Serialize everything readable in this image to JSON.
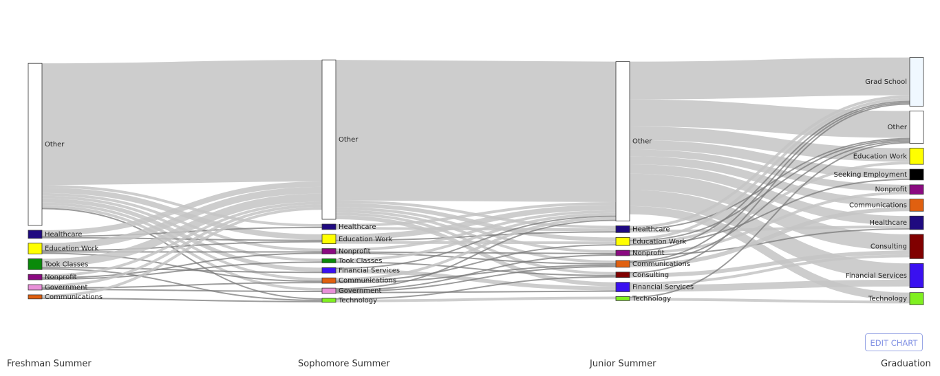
{
  "chart_data": {
    "type": "sankey",
    "columns": [
      "Freshman Summer",
      "Sophomore Summer",
      "Junior Summer",
      "Graduation"
    ],
    "nodes": [
      {
        "id": "f_other",
        "col": 0,
        "label": "Other",
        "color": "#ffffff",
        "value": 60
      },
      {
        "id": "f_health",
        "col": 0,
        "label": "Healthcare",
        "color": "#1f0a80",
        "value": 3
      },
      {
        "id": "f_edu",
        "col": 0,
        "label": "Education Work",
        "color": "#ffff00",
        "value": 4
      },
      {
        "id": "f_took",
        "col": 0,
        "label": "Took Classes",
        "color": "#0a8a0a",
        "value": 4
      },
      {
        "id": "f_nonprofit",
        "col": 0,
        "label": "Nonprofit",
        "color": "#8a0a80",
        "value": 2
      },
      {
        "id": "f_gov",
        "col": 0,
        "label": "Government",
        "color": "#e890d8",
        "value": 2
      },
      {
        "id": "f_comm",
        "col": 0,
        "label": "Communications",
        "color": "#e06010",
        "value": 1.5
      },
      {
        "id": "s_other",
        "col": 1,
        "label": "Other",
        "color": "#ffffff",
        "value": 59
      },
      {
        "id": "s_health",
        "col": 1,
        "label": "Healthcare",
        "color": "#1f0a80",
        "value": 2
      },
      {
        "id": "s_edu",
        "col": 1,
        "label": "Education Work",
        "color": "#ffff00",
        "value": 3.5
      },
      {
        "id": "s_nonprofit",
        "col": 1,
        "label": "Nonprofit",
        "color": "#8a0a80",
        "value": 2
      },
      {
        "id": "s_took",
        "col": 1,
        "label": "Took Classes",
        "color": "#0a8a0a",
        "value": 1.5
      },
      {
        "id": "s_fin",
        "col": 1,
        "label": "Financial Services",
        "color": "#3a10f0",
        "value": 2
      },
      {
        "id": "s_comm",
        "col": 1,
        "label": "Communications",
        "color": "#e06010",
        "value": 2
      },
      {
        "id": "s_gov",
        "col": 1,
        "label": "Government",
        "color": "#e890d8",
        "value": 2
      },
      {
        "id": "s_tech",
        "col": 1,
        "label": "Technology",
        "color": "#80f020",
        "value": 1.5
      },
      {
        "id": "j_other",
        "col": 2,
        "label": "Other",
        "color": "#ffffff",
        "value": 59
      },
      {
        "id": "j_health",
        "col": 2,
        "label": "Healthcare",
        "color": "#1f0a80",
        "value": 2.5
      },
      {
        "id": "j_edu",
        "col": 2,
        "label": "Education Work",
        "color": "#ffff00",
        "value": 3
      },
      {
        "id": "j_nonprofit",
        "col": 2,
        "label": "Nonprofit",
        "color": "#8a0a80",
        "value": 2
      },
      {
        "id": "j_comm",
        "col": 2,
        "label": "Communications",
        "color": "#e06010",
        "value": 2.5
      },
      {
        "id": "j_consult",
        "col": 2,
        "label": "Consulting",
        "color": "#800000",
        "value": 2
      },
      {
        "id": "j_fin",
        "col": 2,
        "label": "Financial Services",
        "color": "#3a10f0",
        "value": 3.5
      },
      {
        "id": "j_tech",
        "col": 2,
        "label": "Technology",
        "color": "#80f020",
        "value": 1.5
      },
      {
        "id": "g_grad",
        "col": 3,
        "label": "Grad School",
        "color": "#f0f8ff",
        "value": 18
      },
      {
        "id": "g_other",
        "col": 3,
        "label": "Other",
        "color": "#ffffff",
        "value": 12
      },
      {
        "id": "g_edu",
        "col": 3,
        "label": "Education Work",
        "color": "#ffff00",
        "value": 6
      },
      {
        "id": "g_seek",
        "col": 3,
        "label": "Seeking Employment",
        "color": "#000000",
        "value": 4
      },
      {
        "id": "g_nonprofit",
        "col": 3,
        "label": "Nonprofit",
        "color": "#8a0a80",
        "value": 3.5
      },
      {
        "id": "g_comm",
        "col": 3,
        "label": "Communications",
        "color": "#e06010",
        "value": 4.5
      },
      {
        "id": "g_health",
        "col": 3,
        "label": "Healthcare",
        "color": "#1f0a80",
        "value": 5
      },
      {
        "id": "g_consult",
        "col": 3,
        "label": "Consulting",
        "color": "#800000",
        "value": 9
      },
      {
        "id": "g_fin",
        "col": 3,
        "label": "Financial Services",
        "color": "#3a10f0",
        "value": 9
      },
      {
        "id": "g_tech",
        "col": 3,
        "label": "Technology",
        "color": "#80f020",
        "value": 4.5
      }
    ],
    "links": [
      {
        "source": "f_other",
        "target": "s_other",
        "value": 45
      },
      {
        "source": "f_other",
        "target": "s_health",
        "value": 1
      },
      {
        "source": "f_other",
        "target": "s_edu",
        "value": 2
      },
      {
        "source": "f_other",
        "target": "s_nonprofit",
        "value": 1
      },
      {
        "source": "f_other",
        "target": "s_took",
        "value": 1
      },
      {
        "source": "f_other",
        "target": "s_fin",
        "value": 1.5
      },
      {
        "source": "f_other",
        "target": "s_comm",
        "value": 1
      },
      {
        "source": "f_other",
        "target": "s_gov",
        "value": 1
      },
      {
        "source": "f_other",
        "target": "s_tech",
        "value": 0.5
      },
      {
        "source": "f_health",
        "target": "s_other",
        "value": 2
      },
      {
        "source": "f_health",
        "target": "s_health",
        "value": 0.5
      },
      {
        "source": "f_health",
        "target": "s_edu",
        "value": 0.5
      },
      {
        "source": "f_edu",
        "target": "s_other",
        "value": 2.5
      },
      {
        "source": "f_edu",
        "target": "s_edu",
        "value": 0.5
      },
      {
        "source": "f_edu",
        "target": "s_nonprofit",
        "value": 0.5
      },
      {
        "source": "f_edu",
        "target": "s_comm",
        "value": 0.5
      },
      {
        "source": "f_took",
        "target": "s_other",
        "value": 3
      },
      {
        "source": "f_took",
        "target": "s_fin",
        "value": 0.5
      },
      {
        "source": "f_took",
        "target": "s_tech",
        "value": 0.5
      },
      {
        "source": "f_nonprofit",
        "target": "s_other",
        "value": 1
      },
      {
        "source": "f_nonprofit",
        "target": "s_nonprofit",
        "value": 0.5
      },
      {
        "source": "f_nonprofit",
        "target": "s_took",
        "value": 0.5
      },
      {
        "source": "f_gov",
        "target": "s_other",
        "value": 1
      },
      {
        "source": "f_gov",
        "target": "s_gov",
        "value": 0.5
      },
      {
        "source": "f_gov",
        "target": "s_comm",
        "value": 0.5
      },
      {
        "source": "f_comm",
        "target": "s_other",
        "value": 1
      },
      {
        "source": "f_comm",
        "target": "s_tech",
        "value": 0.5
      },
      {
        "source": "s_other",
        "target": "j_other",
        "value": 52
      },
      {
        "source": "s_other",
        "target": "j_health",
        "value": 1
      },
      {
        "source": "s_other",
        "target": "j_edu",
        "value": 1.5
      },
      {
        "source": "s_other",
        "target": "j_nonprofit",
        "value": 1
      },
      {
        "source": "s_other",
        "target": "j_comm",
        "value": 1
      },
      {
        "source": "s_other",
        "target": "j_consult",
        "value": 1
      },
      {
        "source": "s_other",
        "target": "j_fin",
        "value": 1.5
      },
      {
        "source": "s_health",
        "target": "j_other",
        "value": 1
      },
      {
        "source": "s_health",
        "target": "j_health",
        "value": 1
      },
      {
        "source": "s_edu",
        "target": "j_other",
        "value": 2
      },
      {
        "source": "s_edu",
        "target": "j_edu",
        "value": 1
      },
      {
        "source": "s_edu",
        "target": "j_health",
        "value": 0.5
      },
      {
        "source": "s_nonprofit",
        "target": "j_other",
        "value": 1
      },
      {
        "source": "s_nonprofit",
        "target": "j_nonprofit",
        "value": 0.5
      },
      {
        "source": "s_nonprofit",
        "target": "j_comm",
        "value": 0.5
      },
      {
        "source": "s_took",
        "target": "j_other",
        "value": 1
      },
      {
        "source": "s_took",
        "target": "j_consult",
        "value": 0.5
      },
      {
        "source": "s_fin",
        "target": "j_fin",
        "value": 1.5
      },
      {
        "source": "s_fin",
        "target": "j_other",
        "value": 0.5
      },
      {
        "source": "s_comm",
        "target": "j_other",
        "value": 1
      },
      {
        "source": "s_comm",
        "target": "j_comm",
        "value": 0.5
      },
      {
        "source": "s_comm",
        "target": "j_edu",
        "value": 0.5
      },
      {
        "source": "s_gov",
        "target": "j_other",
        "value": 0.5
      },
      {
        "source": "s_gov",
        "target": "j_fin",
        "value": 0.5
      },
      {
        "source": "s_gov",
        "target": "j_nonprofit",
        "value": 0.5
      },
      {
        "source": "s_gov",
        "target": "j_comm",
        "value": 0.5
      },
      {
        "source": "s_tech",
        "target": "j_tech",
        "value": 1
      },
      {
        "source": "s_tech",
        "target": "j_consult",
        "value": 0.5
      },
      {
        "source": "j_other",
        "target": "g_grad",
        "value": 14
      },
      {
        "source": "j_other",
        "target": "g_other",
        "value": 10
      },
      {
        "source": "j_other",
        "target": "g_edu",
        "value": 5
      },
      {
        "source": "j_other",
        "target": "g_seek",
        "value": 3.5
      },
      {
        "source": "j_other",
        "target": "g_nonprofit",
        "value": 2.5
      },
      {
        "source": "j_other",
        "target": "g_comm",
        "value": 3
      },
      {
        "source": "j_other",
        "target": "g_health",
        "value": 3.5
      },
      {
        "source": "j_other",
        "target": "g_consult",
        "value": 6
      },
      {
        "source": "j_other",
        "target": "g_fin",
        "value": 6
      },
      {
        "source": "j_other",
        "target": "g_tech",
        "value": 3
      },
      {
        "source": "j_health",
        "target": "g_health",
        "value": 1
      },
      {
        "source": "j_health",
        "target": "g_grad",
        "value": 1
      },
      {
        "source": "j_health",
        "target": "g_other",
        "value": 0.5
      },
      {
        "source": "j_edu",
        "target": "g_edu",
        "value": 1
      },
      {
        "source": "j_edu",
        "target": "g_grad",
        "value": 1
      },
      {
        "source": "j_edu",
        "target": "g_other",
        "value": 0.5
      },
      {
        "source": "j_edu",
        "target": "g_seek",
        "value": 0.5
      },
      {
        "source": "j_nonprofit",
        "target": "g_nonprofit",
        "value": 1
      },
      {
        "source": "j_nonprofit",
        "target": "g_grad",
        "value": 0.5
      },
      {
        "source": "j_nonprofit",
        "target": "g_health",
        "value": 0.5
      },
      {
        "source": "j_comm",
        "target": "g_comm",
        "value": 1.5
      },
      {
        "source": "j_comm",
        "target": "g_grad",
        "value": 0.5
      },
      {
        "source": "j_comm",
        "target": "g_other",
        "value": 0.5
      },
      {
        "source": "j_consult",
        "target": "g_consult",
        "value": 1.5
      },
      {
        "source": "j_consult",
        "target": "g_grad",
        "value": 0.5
      },
      {
        "source": "j_fin",
        "target": "g_fin",
        "value": 2.5
      },
      {
        "source": "j_fin",
        "target": "g_consult",
        "value": 1
      },
      {
        "source": "j_tech",
        "target": "g_tech",
        "value": 1
      },
      {
        "source": "j_tech",
        "target": "g_other",
        "value": 0.5
      }
    ]
  },
  "edit_button": {
    "label": "EDIT CHART"
  }
}
